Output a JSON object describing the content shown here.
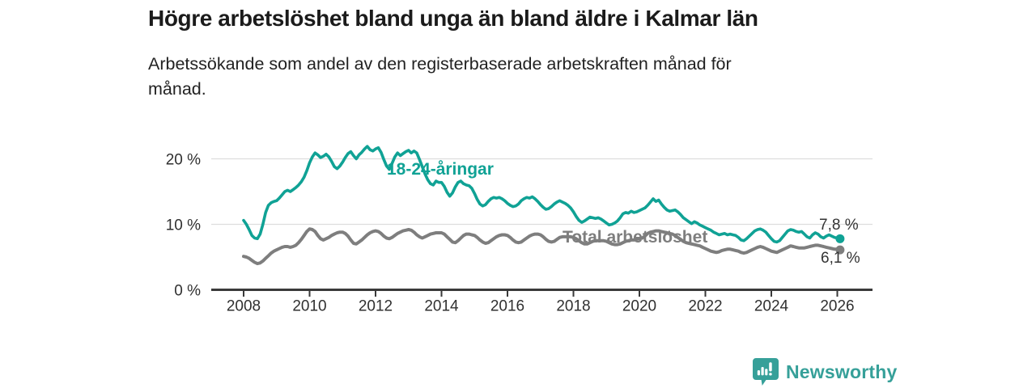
{
  "chart_data": {
    "type": "line",
    "title": "Högre arbetslöshet bland unga än bland äldre i Kalmar län",
    "subtitle_lines": [
      "Arbetssökande som andel av den registerbaserade arbetskraften månad för",
      "månad."
    ],
    "x_start_year": 2008,
    "x_step": "monthly",
    "x_ticks": [
      2008,
      2010,
      2012,
      2014,
      2016,
      2018,
      2020,
      2022,
      2024,
      2026
    ],
    "y_ticks": [
      {
        "label": "20 %",
        "value": 20
      },
      {
        "label": "10 %",
        "value": 10
      },
      {
        "label": "0 %",
        "value": 0
      }
    ],
    "ylim": [
      0,
      23
    ],
    "xlim": [
      2007,
      2027
    ],
    "grid": "horizontal gridlines at 10% and 20%, legend as inline series labels",
    "colors": {
      "axis": "#3a3a3a",
      "grid": "#dddddd",
      "tick_text": "#303030",
      "value_label_text": "#333333"
    },
    "series": [
      {
        "name": "18-24-åringar",
        "color": "#10a295",
        "line_width": 3.6,
        "end_value_label": "7,8 %",
        "last_value": 7.8,
        "values": [
          10.6,
          10.0,
          9.2,
          8.3,
          7.9,
          7.8,
          8.5,
          10.0,
          11.8,
          12.9,
          13.3,
          13.5,
          13.6,
          14.0,
          14.5,
          15.0,
          15.2,
          15.0,
          15.3,
          15.6,
          16.0,
          16.5,
          17.2,
          18.2,
          19.4,
          20.3,
          20.9,
          20.6,
          20.2,
          20.4,
          20.7,
          20.3,
          19.6,
          18.8,
          18.5,
          18.9,
          19.5,
          20.2,
          20.8,
          21.1,
          20.5,
          20.0,
          20.6,
          21.0,
          21.5,
          21.9,
          21.4,
          21.2,
          21.5,
          21.7,
          21.0,
          19.9,
          18.9,
          18.4,
          19.3,
          20.3,
          20.9,
          20.5,
          20.8,
          21.1,
          21.3,
          20.9,
          21.2,
          20.9,
          19.9,
          18.8,
          17.7,
          16.8,
          16.2,
          16.0,
          16.6,
          16.4,
          16.4,
          15.8,
          14.9,
          14.3,
          14.8,
          15.7,
          16.4,
          16.6,
          16.2,
          16.0,
          15.9,
          15.5,
          14.7,
          13.8,
          13.1,
          12.8,
          13.0,
          13.5,
          13.9,
          14.1,
          14.0,
          14.1,
          13.9,
          13.6,
          13.2,
          12.9,
          12.7,
          12.8,
          13.1,
          13.6,
          13.9,
          14.1,
          14.0,
          14.2,
          13.9,
          13.5,
          13.0,
          12.6,
          12.3,
          12.4,
          12.7,
          13.1,
          13.4,
          13.6,
          13.4,
          13.2,
          12.9,
          12.5,
          11.9,
          11.2,
          10.6,
          10.3,
          10.5,
          10.8,
          11.1,
          11.0,
          10.9,
          11.0,
          10.8,
          10.5,
          10.2,
          9.9,
          10.0,
          10.2,
          10.5,
          11.0,
          11.6,
          11.8,
          11.7,
          12.0,
          11.8,
          11.9,
          12.1,
          12.3,
          12.5,
          12.9,
          13.4,
          13.9,
          13.5,
          13.7,
          13.1,
          12.6,
          12.2,
          12.0,
          12.1,
          12.2,
          11.9,
          11.5,
          11.0,
          10.7,
          10.4,
          10.1,
          10.4,
          10.2,
          9.9,
          9.7,
          9.5,
          9.3,
          9.1,
          8.8,
          8.6,
          8.4,
          8.5,
          8.6,
          8.4,
          8.5,
          8.4,
          8.3,
          8.0,
          7.6,
          7.5,
          7.8,
          8.2,
          8.6,
          9.0,
          9.2,
          9.3,
          9.1,
          8.8,
          8.3,
          7.8,
          7.4,
          7.3,
          7.5,
          8.0,
          8.5,
          9.0,
          9.2,
          9.1,
          8.9,
          8.8,
          8.9,
          8.5,
          8.1,
          7.9,
          8.4,
          8.7,
          8.5,
          8.1,
          7.9,
          8.2,
          8.4,
          8.2,
          8.0,
          7.9,
          7.8
        ]
      },
      {
        "name": "Total arbetslöshet",
        "color": "#7e7e7e",
        "line_width": 4,
        "end_value_label": "6,1 %",
        "last_value": 6.1,
        "values": [
          5.1,
          5.0,
          4.8,
          4.5,
          4.2,
          4.0,
          4.1,
          4.4,
          4.8,
          5.2,
          5.6,
          5.9,
          6.1,
          6.3,
          6.5,
          6.6,
          6.6,
          6.5,
          6.6,
          6.8,
          7.2,
          7.7,
          8.3,
          8.9,
          9.3,
          9.2,
          8.9,
          8.3,
          7.8,
          7.6,
          7.8,
          8.0,
          8.3,
          8.5,
          8.7,
          8.8,
          8.8,
          8.6,
          8.2,
          7.6,
          7.1,
          7.0,
          7.3,
          7.6,
          8.0,
          8.4,
          8.7,
          8.9,
          9.0,
          8.9,
          8.6,
          8.2,
          7.9,
          7.8,
          8.0,
          8.3,
          8.6,
          8.8,
          9.0,
          9.1,
          9.2,
          9.1,
          8.8,
          8.4,
          8.1,
          7.9,
          8.1,
          8.3,
          8.5,
          8.6,
          8.7,
          8.7,
          8.7,
          8.5,
          8.1,
          7.7,
          7.3,
          7.2,
          7.5,
          7.9,
          8.3,
          8.5,
          8.5,
          8.4,
          8.3,
          8.0,
          7.6,
          7.3,
          7.1,
          7.2,
          7.5,
          7.8,
          8.1,
          8.3,
          8.4,
          8.4,
          8.3,
          8.0,
          7.6,
          7.3,
          7.2,
          7.3,
          7.6,
          7.9,
          8.2,
          8.4,
          8.5,
          8.5,
          8.4,
          8.1,
          7.7,
          7.4,
          7.3,
          7.4,
          7.7,
          8.0,
          8.1,
          8.1,
          8.1,
          8.1,
          8.0,
          7.8,
          7.5,
          7.2,
          7.0,
          7.0,
          7.2,
          7.4,
          7.5,
          7.5,
          7.5,
          7.5,
          7.4,
          7.2,
          7.0,
          6.9,
          6.9,
          7.0,
          7.2,
          7.4,
          7.5,
          7.6,
          7.6,
          7.7,
          7.8,
          7.9,
          8.2,
          8.6,
          8.8,
          8.9,
          9.0,
          9.0,
          8.9,
          8.8,
          8.7,
          8.6,
          8.5,
          8.3,
          8.0,
          7.7,
          7.4,
          7.2,
          7.1,
          7.0,
          6.9,
          6.8,
          6.7,
          6.5,
          6.3,
          6.1,
          5.9,
          5.8,
          5.7,
          5.8,
          6.0,
          6.1,
          6.2,
          6.2,
          6.1,
          6.0,
          5.9,
          5.7,
          5.6,
          5.7,
          5.9,
          6.1,
          6.3,
          6.5,
          6.6,
          6.5,
          6.3,
          6.1,
          5.9,
          5.8,
          5.7,
          5.9,
          6.1,
          6.3,
          6.5,
          6.7,
          6.6,
          6.5,
          6.4,
          6.4,
          6.4,
          6.5,
          6.6,
          6.7,
          6.8,
          6.8,
          6.7,
          6.6,
          6.5,
          6.4,
          6.3,
          6.2,
          6.2,
          6.1
        ]
      }
    ]
  },
  "branding": {
    "name": "Newsworthy",
    "color": "#36a099",
    "icon": "newsworthy-bar-chart-speech-bubble-icon"
  }
}
